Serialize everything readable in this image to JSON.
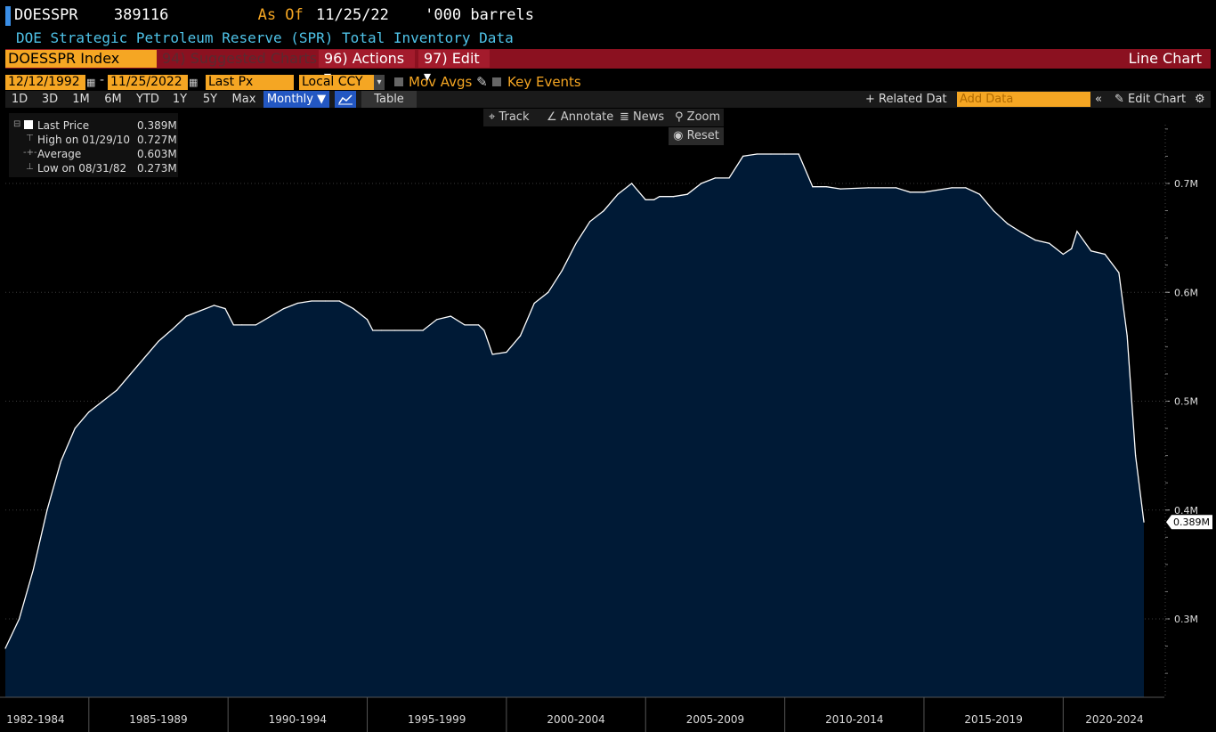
{
  "header": {
    "ticker": "DOESSPR",
    "value": "389116",
    "as_of_label": "As Of",
    "as_of_date": "11/25/22",
    "units": "'000 barrels",
    "description": "DOE Strategic Petroleum Reserve (SPR) Total Inventory Data"
  },
  "menu": {
    "security": "DOESSPR Index",
    "suggested": "94) Suggested Charts",
    "actions": "96) Actions ▾",
    "edit": "97) Edit ▾",
    "chart_type": "Line Chart"
  },
  "controls": {
    "start_date": "12/12/1992",
    "end_date": "11/25/2022",
    "field": "Last Px",
    "currency": "Local CCY",
    "mov_avgs": "Mov Avgs",
    "key_events": "Key Events"
  },
  "ranges": [
    "1D",
    "3D",
    "1M",
    "6M",
    "YTD",
    "1Y",
    "5Y",
    "Max"
  ],
  "periodicity": "Monthly ▼",
  "table_label": "Table",
  "related_data": "+ Related Dat",
  "add_data_placeholder": "Add Data",
  "edit_chart": "Edit Chart",
  "tools": {
    "track": "Track",
    "annotate": "Annotate",
    "news": "News",
    "zoom": "Zoom",
    "reset": "Reset"
  },
  "legend": [
    {
      "label": "Last Price",
      "value": "0.389M"
    },
    {
      "label": "High on 01/29/10",
      "value": "0.727M"
    },
    {
      "label": "Average",
      "value": "0.603M"
    },
    {
      "label": "Low on 08/31/82",
      "value": "0.273M"
    }
  ],
  "colors": {
    "fill": "#001a36",
    "line": "#ffffff",
    "accent": "#f5a623",
    "bar": "#8b1120",
    "title": "#4fc3e8"
  },
  "chart_data": {
    "type": "area",
    "xlabel": "",
    "ylabel": "",
    "y_unit": "M",
    "ylim": [
      0.23,
      0.78
    ],
    "xlim": [
      1982.0,
      2023.0
    ],
    "grid": true,
    "y_ticks": [
      "0.3M",
      "0.4M",
      "0.5M",
      "0.6M",
      "0.7M"
    ],
    "y_tick_values": [
      0.3,
      0.4,
      0.5,
      0.6,
      0.7
    ],
    "x_ticks": [
      "1982-1984",
      "1985-1989",
      "1990-1994",
      "1995-1999",
      "2000-2004",
      "2005-2009",
      "2010-2014",
      "2015-2019",
      "2020-2024"
    ],
    "last_value_label": "0.389M",
    "series": [
      {
        "x": [
          1982.0,
          1982.5,
          1983.0,
          1983.5,
          1984.0,
          1984.5,
          1985.0,
          1985.5,
          1986.0,
          1986.5,
          1987.0,
          1987.5,
          1988.0,
          1988.5,
          1989.0,
          1989.5,
          1989.9,
          1990.2,
          1990.5,
          1991.0,
          1992.0,
          1992.5,
          1993.0,
          1993.5,
          1994.0,
          1994.5,
          1995.0,
          1995.2,
          1995.5,
          1996.0,
          1997.0,
          1997.5,
          1998.0,
          1998.5,
          1999.0,
          1999.2,
          1999.5,
          2000.0,
          2000.5,
          2001.0,
          2001.5,
          2002.0,
          2002.5,
          2003.0,
          2003.5,
          2004.0,
          2004.5,
          2005.0,
          2005.3,
          2005.5,
          2006.0,
          2006.5,
          2007.0,
          2007.5,
          2008.0,
          2008.5,
          2009.0,
          2009.5,
          2010.0,
          2010.5,
          2011.0,
          2011.5,
          2012.0,
          2013.0,
          2014.0,
          2014.5,
          2015.0,
          2016.0,
          2016.5,
          2017.0,
          2017.5,
          2018.0,
          2018.5,
          2019.0,
          2019.5,
          2020.0,
          2020.3,
          2020.5,
          2021.0,
          2021.5,
          2022.0,
          2022.3,
          2022.6,
          2022.9
        ],
        "y": [
          0.273,
          0.3,
          0.345,
          0.4,
          0.445,
          0.475,
          0.49,
          0.5,
          0.51,
          0.525,
          0.54,
          0.555,
          0.566,
          0.578,
          0.583,
          0.588,
          0.585,
          0.57,
          0.57,
          0.57,
          0.585,
          0.59,
          0.592,
          0.592,
          0.592,
          0.585,
          0.575,
          0.565,
          0.565,
          0.565,
          0.565,
          0.575,
          0.578,
          0.57,
          0.57,
          0.565,
          0.543,
          0.545,
          0.56,
          0.59,
          0.6,
          0.62,
          0.645,
          0.665,
          0.675,
          0.69,
          0.7,
          0.685,
          0.685,
          0.688,
          0.688,
          0.69,
          0.7,
          0.705,
          0.705,
          0.725,
          0.727,
          0.727,
          0.727,
          0.727,
          0.697,
          0.697,
          0.695,
          0.696,
          0.696,
          0.692,
          0.692,
          0.696,
          0.696,
          0.69,
          0.675,
          0.663,
          0.655,
          0.648,
          0.645,
          0.635,
          0.64,
          0.656,
          0.638,
          0.635,
          0.618,
          0.56,
          0.45,
          0.389
        ]
      }
    ]
  }
}
